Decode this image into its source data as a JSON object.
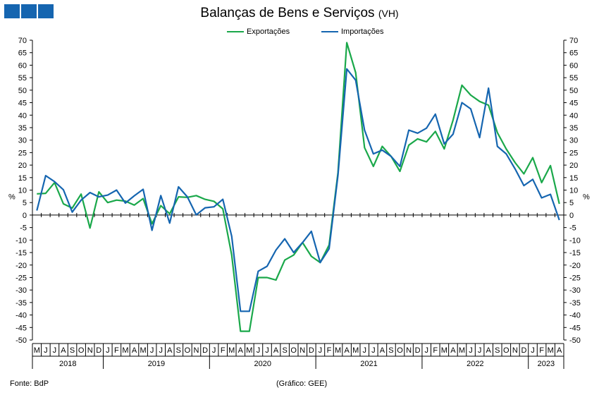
{
  "chart_data": {
    "type": "line",
    "title": "Balanças de Bens e Serviços",
    "subtitle": "(VH)",
    "ylabel": "%",
    "ylim": [
      -50,
      70
    ],
    "ytick_step": 5,
    "x": [
      "M",
      "J",
      "J",
      "A",
      "S",
      "O",
      "N",
      "D",
      "J",
      "F",
      "M",
      "A",
      "M",
      "J",
      "J",
      "A",
      "S",
      "O",
      "N",
      "D",
      "J",
      "F",
      "M",
      "A",
      "M",
      "J",
      "J",
      "A",
      "S",
      "O",
      "N",
      "D",
      "J",
      "F",
      "M",
      "A",
      "M",
      "J",
      "J",
      "A",
      "S",
      "O",
      "N",
      "D",
      "J",
      "F",
      "M",
      "A",
      "M",
      "J",
      "J",
      "A",
      "S",
      "O",
      "N",
      "D",
      "J",
      "F",
      "M",
      "A"
    ],
    "years": [
      {
        "label": "2018",
        "start": 0,
        "end": 7
      },
      {
        "label": "2019",
        "start": 8,
        "end": 19
      },
      {
        "label": "2020",
        "start": 20,
        "end": 31
      },
      {
        "label": "2021",
        "start": 32,
        "end": 43
      },
      {
        "label": "2022",
        "start": 44,
        "end": 55
      },
      {
        "label": "2023",
        "start": 56,
        "end": 59
      }
    ],
    "series": [
      {
        "name": "Exportações",
        "color": "#1aa84a",
        "values": [
          8.5,
          8.7,
          13,
          4.5,
          2.8,
          8.4,
          -5.2,
          9.3,
          5,
          6,
          5.6,
          4,
          6.6,
          -3.5,
          3.8,
          0.5,
          7.3,
          7.1,
          7.8,
          6.3,
          5.5,
          2.5,
          -16,
          -46.5,
          -46.5,
          -25,
          -25,
          -26,
          -18,
          -16,
          -11,
          -16.5,
          -19,
          -12,
          17,
          69,
          57,
          27,
          19.5,
          27.5,
          23.5,
          17.5,
          28,
          30.5,
          29.3,
          33.5,
          26.5,
          38,
          52,
          48,
          45.5,
          44,
          33,
          26.5,
          21,
          16.5,
          23,
          13,
          19.8,
          4.5
        ]
      },
      {
        "name": "Importações",
        "color": "#1565b0",
        "values": [
          1.8,
          15.8,
          13.4,
          10.1,
          1.2,
          6,
          9,
          7.3,
          8,
          10,
          4.8,
          7.7,
          10.3,
          -6.1,
          7.8,
          -3.2,
          11.3,
          7.3,
          0.1,
          2.9,
          3.3,
          6.3,
          -8.5,
          -38.5,
          -38.5,
          -22.5,
          -20.5,
          -14,
          -9.5,
          -15,
          -11,
          -6.5,
          -19,
          -13.5,
          16,
          58.5,
          54,
          34,
          24.5,
          26,
          23.5,
          19.5,
          34,
          32.8,
          34.8,
          40.4,
          28.5,
          32.4,
          45,
          42.5,
          31,
          50.8,
          27.5,
          24.5,
          18.5,
          11.8,
          14.3,
          6.9,
          8.3,
          -2
        ]
      }
    ]
  },
  "footer": {
    "source": "Fonte: BdP",
    "credit": "(Gráfico: GEE)"
  }
}
